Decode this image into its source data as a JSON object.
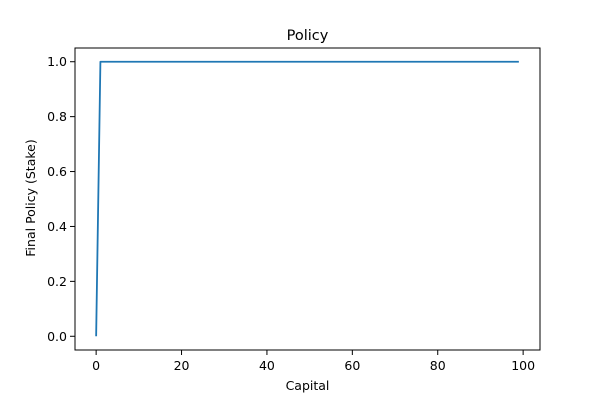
{
  "chart_data": {
    "type": "line",
    "title": "Policy",
    "xlabel": "Capital",
    "ylabel": "Final Policy (Stake)",
    "xlim": [
      -4.95,
      103.95
    ],
    "ylim": [
      -0.05,
      1.05
    ],
    "x_ticks": [
      0,
      20,
      40,
      60,
      80,
      100
    ],
    "y_ticks": [
      0.0,
      0.2,
      0.4,
      0.6,
      0.8,
      1.0
    ],
    "x_tick_labels": [
      "0",
      "20",
      "40",
      "60",
      "80",
      "100"
    ],
    "y_tick_labels": [
      "0.0",
      "0.2",
      "0.4",
      "0.6",
      "0.8",
      "1.0"
    ],
    "grid": false,
    "legend": "none",
    "series": [
      {
        "color": "#1f77b4",
        "x": [
          0,
          1,
          99
        ],
        "y": [
          0.0,
          1.0,
          1.0
        ]
      }
    ]
  }
}
